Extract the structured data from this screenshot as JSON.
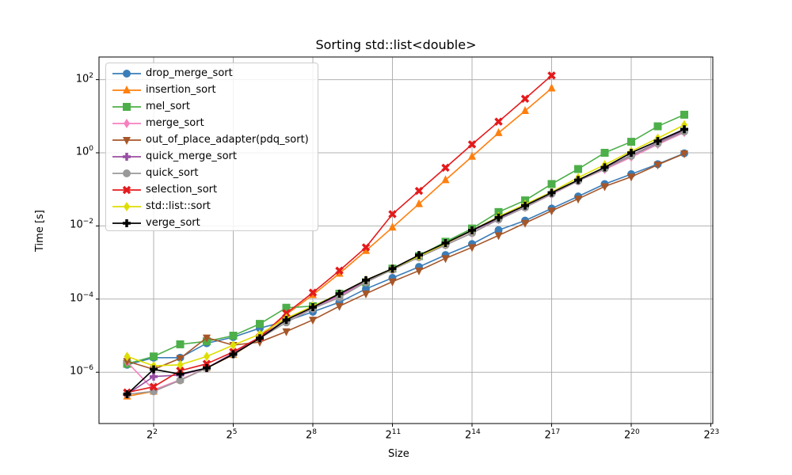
{
  "chart_data": {
    "type": "line",
    "title": "Sorting std::list<double>",
    "xlabel": "Size",
    "ylabel": "Time [s]",
    "xscale": "log2",
    "yscale": "log10",
    "xlim_exp2": [
      0.1,
      23.1
    ],
    "ylim_exp10": [
      -7.5,
      2.6
    ],
    "x_ticks": [
      "2^2",
      "2^5",
      "2^8",
      "2^11",
      "2^14",
      "2^17",
      "2^20",
      "2^23"
    ],
    "y_ticks": [
      "10^-6",
      "10^-4",
      "10^-2",
      "10^0",
      "10^2"
    ],
    "grid": true,
    "legend_position": "upper left",
    "error_bars": true,
    "x_exponents": [
      1,
      2,
      3,
      4,
      5,
      6,
      7,
      8,
      9,
      10,
      11,
      12,
      13,
      14,
      15,
      16,
      17,
      18,
      19,
      20,
      21,
      22
    ],
    "series": [
      {
        "name": "drop_merge_sort",
        "color": "#3a7db8",
        "marker": "circle",
        "values": [
          1.6e-06,
          2.5e-06,
          2.5e-06,
          6.2e-06,
          9.1e-06,
          1.6e-05,
          2.5e-05,
          4.5e-05,
          8.2e-05,
          0.00019,
          0.00038,
          0.00076,
          0.0016,
          0.0032,
          0.0077,
          0.014,
          0.03,
          0.064,
          0.14,
          0.26,
          0.49,
          0.97
        ]
      },
      {
        "name": "insertion_sort",
        "color": "#ff7f0e",
        "marker": "triangle-up",
        "values": [
          2.2e-07,
          3e-07,
          6.2e-07,
          1.3e-06,
          3e-06,
          8.5e-06,
          3.8e-05,
          0.00013,
          0.0005,
          0.0021,
          0.0091,
          0.04,
          0.18,
          0.79,
          3.5,
          14,
          58
        ]
      },
      {
        "name": "mel_sort",
        "color": "#4daf4a",
        "marker": "square",
        "values": [
          1.7e-06,
          2.7e-06,
          5.8e-06,
          7e-06,
          1e-05,
          2.1e-05,
          5.8e-05,
          6.4e-05,
          0.00014,
          0.00029,
          0.00068,
          0.0015,
          0.0037,
          0.0085,
          0.024,
          0.05,
          0.14,
          0.36,
          1.0,
          2.0,
          5.3,
          11
        ]
      },
      {
        "name": "merge_sort",
        "color": "#f781bf",
        "marker": "diamond",
        "values": [
          1.9e-06,
          3.3e-07,
          6.2e-07,
          1.3e-06,
          3.3e-06,
          8.9e-06,
          2.7e-05,
          5.5e-05,
          0.00012,
          0.00029,
          0.00064,
          0.0014,
          0.003,
          0.0064,
          0.015,
          0.032,
          0.073,
          0.17,
          0.35,
          0.76,
          1.7,
          3.6
        ]
      },
      {
        "name": "out_of_place_adapter(pdq_sort)",
        "color": "#a65628",
        "marker": "triangle-down",
        "values": [
          2e-06,
          1.2e-06,
          2.4e-06,
          8.8e-06,
          5.5e-06,
          6.7e-06,
          1.3e-05,
          2.7e-05,
          6.4e-05,
          0.00014,
          0.0003,
          0.0006,
          0.0013,
          0.0026,
          0.0055,
          0.012,
          0.026,
          0.055,
          0.12,
          0.22,
          0.47,
          0.95
        ]
      },
      {
        "name": "quick_merge_sort",
        "color": "#984ea3",
        "marker": "plus",
        "values": [
          2.5e-07,
          7.6e-07,
          8.4e-07,
          1.3e-06,
          3.3e-06,
          8.9e-06,
          2.8e-05,
          6e-05,
          0.00013,
          0.00032,
          0.00064,
          0.0015,
          0.0033,
          0.0073,
          0.016,
          0.036,
          0.077,
          0.17,
          0.38,
          0.85,
          1.9,
          4.1
        ]
      },
      {
        "name": "quick_sort",
        "color": "#999999",
        "marker": "octagon",
        "values": [
          2.5e-07,
          3e-07,
          6e-07,
          1.3e-06,
          3.1e-06,
          8.5e-06,
          2.3e-05,
          5.5e-05,
          0.00011,
          0.00029,
          0.00064,
          0.0014,
          0.003,
          0.0064,
          0.015,
          0.032,
          0.076,
          0.17,
          0.37,
          0.82,
          1.8,
          3.8
        ]
      },
      {
        "name": "selection_sort",
        "color": "#e41a1c",
        "marker": "x-filled",
        "values": [
          2.8e-07,
          4e-07,
          1.1e-06,
          1.7e-06,
          3.6e-06,
          9.1e-06,
          4.1e-05,
          0.00015,
          0.0006,
          0.0026,
          0.021,
          0.091,
          0.39,
          1.7,
          7.1,
          30,
          130
        ]
      },
      {
        "name": "std::list::sort",
        "color": "#dede00",
        "marker": "diamond",
        "values": [
          2.7e-06,
          1.5e-06,
          1.6e-06,
          2.7e-06,
          5.5e-06,
          1.1e-05,
          3e-05,
          6.4e-05,
          0.00014,
          0.00033,
          0.00068,
          0.0015,
          0.0033,
          0.0076,
          0.018,
          0.039,
          0.085,
          0.21,
          0.47,
          1.1,
          2.5,
          5.8
        ]
      },
      {
        "name": "verge_sort",
        "color": "#000000",
        "marker": "plus",
        "values": [
          2.5e-07,
          1.2e-06,
          8.9e-07,
          1.3e-06,
          3.1e-06,
          8.5e-06,
          2.7e-05,
          6e-05,
          0.00014,
          0.00033,
          0.00068,
          0.0016,
          0.0034,
          0.0076,
          0.017,
          0.036,
          0.081,
          0.18,
          0.4,
          1.0,
          2.1,
          4.4
        ]
      }
    ]
  },
  "labels": {
    "title": "Sorting std::list<double>",
    "xlabel": "Size",
    "ylabel": "Time [s]"
  }
}
